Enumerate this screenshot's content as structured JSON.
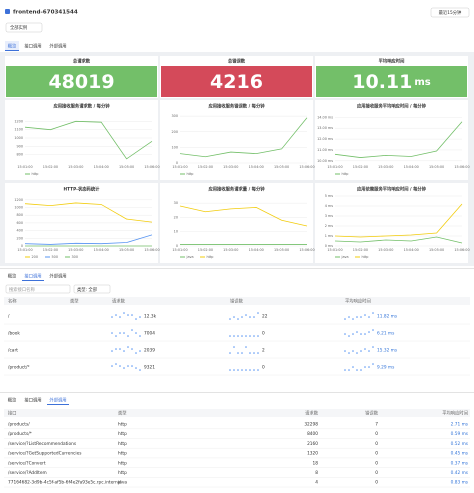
{
  "header": {
    "title": "frontend-670341544",
    "time_button": "最近15分钟",
    "instance": "全部实例"
  },
  "tabs": [
    "概览",
    "接口调用",
    "外部调用"
  ],
  "stats": [
    {
      "title": "总请求数",
      "value": "48019",
      "color": "#73bf69"
    },
    {
      "title": "总错误数",
      "value": "4216",
      "color": "#d44a5a"
    },
    {
      "title": "平均响应时间",
      "value": "10.11",
      "unit": "ms",
      "color": "#73bf69"
    }
  ],
  "charts": [
    {
      "type": "line",
      "title": "应用接收服务请求数 / 每分钟",
      "categories": [
        "15:01:00",
        "15:02:00",
        "15:03:00",
        "15:04:00",
        "15:05:00",
        "15:06:00"
      ],
      "series": [
        {
          "name": "http",
          "color": "#73bf69",
          "values": [
            1130,
            1100,
            1200,
            1190,
            750,
            960
          ]
        }
      ],
      "ylim": [
        700,
        1300
      ],
      "yticks": [
        800,
        900,
        1000,
        1100,
        1200
      ]
    },
    {
      "type": "line",
      "title": "应用接收服务错误数 / 每分钟",
      "categories": [
        "15:01:00",
        "15:02:00",
        "15:03:00",
        "15:04:00",
        "15:05:00",
        "15:06:00"
      ],
      "series": [
        {
          "name": "http",
          "color": "#73bf69",
          "values": [
            60,
            40,
            70,
            60,
            90,
            290
          ]
        }
      ],
      "ylim": [
        0,
        320
      ],
      "yticks": [
        0,
        100,
        200,
        300
      ]
    },
    {
      "type": "line",
      "title": "应用接收服务平均响应时间 / 每分钟",
      "categories": [
        "15:01:00",
        "15:02:00",
        "15:03:00",
        "15:04:00",
        "15:05:00",
        "15:06:00"
      ],
      "series": [
        {
          "name": "http",
          "color": "#73bf69",
          "values": [
            10.6,
            10.3,
            10.5,
            10.4,
            10.9,
            13.6
          ]
        }
      ],
      "ylim": [
        9.8,
        14.4
      ],
      "yticks": [
        {
          "value": 10,
          "label": "10.00 ms"
        },
        {
          "value": 11,
          "label": "11.00 ms"
        },
        {
          "value": 12,
          "label": "12.00 ms"
        },
        {
          "value": 13,
          "label": "13.00 ms"
        },
        {
          "value": 14,
          "label": "14.00 ms"
        }
      ]
    },
    {
      "type": "line",
      "title": "HTTP-状态码统计",
      "categories": [
        "15:01:00",
        "15:02:00",
        "15:03:00",
        "15:04:00",
        "15:05:00",
        "15:06:00"
      ],
      "series": [
        {
          "name": "200",
          "color": "#f2cc0c",
          "values": [
            1100,
            1050,
            1120,
            1080,
            700,
            620
          ]
        },
        {
          "name": "500",
          "color": "#5794f2",
          "values": [
            60,
            40,
            70,
            60,
            90,
            290
          ]
        },
        {
          "name": "300",
          "color": "#73bf69",
          "values": [
            0,
            0,
            0,
            0,
            0,
            0
          ]
        }
      ],
      "ylim": [
        0,
        1300
      ],
      "yticks": [
        0,
        200,
        400,
        600,
        800,
        1000,
        1200
      ]
    },
    {
      "type": "line",
      "title": "应用接收服务请求量 / 每分钟",
      "categories": [
        "15:01:00",
        "15:02:00",
        "15:03:00",
        "15:04:00",
        "15:05:00",
        "15:06:00"
      ],
      "series": [
        {
          "name": "java",
          "color": "#73bf69",
          "values": [
            1,
            1,
            1,
            1,
            1,
            1
          ]
        },
        {
          "name": "http",
          "color": "#f2cc0c",
          "values": [
            28,
            24,
            26,
            27,
            18,
            14
          ]
        }
      ],
      "ylim": [
        0,
        35
      ],
      "yticks": [
        0,
        10,
        20,
        30
      ]
    },
    {
      "type": "line",
      "title": "应用依赖服务平均响应时间 / 每分钟",
      "categories": [
        "15:01:00",
        "15:02:00",
        "15:03:00",
        "15:04:00",
        "15:05:00",
        "15:06:00"
      ],
      "series": [
        {
          "name": "java",
          "color": "#73bf69",
          "values": [
            0.5,
            0.4,
            0.6,
            0.5,
            0.9,
            0.3
          ]
        },
        {
          "name": "http",
          "color": "#f2cc0c",
          "values": [
            1.0,
            0.9,
            1.0,
            1.1,
            1.3,
            4.2
          ]
        }
      ],
      "ylim": [
        0,
        5
      ],
      "yticks": [
        {
          "value": 0,
          "label": "0 ms"
        },
        {
          "value": 1,
          "label": "1 ms"
        },
        {
          "value": 2,
          "label": "2 ms"
        },
        {
          "value": 3,
          "label": "3 ms"
        },
        {
          "value": 4,
          "label": "4 ms"
        },
        {
          "value": 5,
          "label": "5 ms"
        }
      ]
    }
  ],
  "interface_table": {
    "search_placeholder": "搜索接口名称",
    "type_filter": "类型: 全部",
    "columns": [
      "名称",
      "类型",
      "请求数",
      "错误数",
      "平均响应时间"
    ],
    "rows": [
      {
        "name": "/",
        "requests": "12.3k",
        "errors": "22",
        "latency": "11.82 ms",
        "req_trend": [
          5,
          6,
          5,
          7,
          6,
          6,
          4,
          5
        ],
        "err_trend": [
          1,
          2,
          1,
          2,
          3,
          2,
          2,
          4
        ],
        "lat_trend": [
          3,
          4,
          3,
          4,
          4,
          5,
          4,
          6
        ]
      },
      {
        "name": "/book",
        "requests": "7004",
        "errors": "0",
        "latency": "6.21 ms",
        "req_trend": [
          6,
          5,
          6,
          6,
          5,
          7,
          6,
          5
        ],
        "err_trend": [
          0,
          0,
          0,
          0,
          0,
          0,
          0,
          0
        ],
        "lat_trend": [
          4,
          3,
          4,
          5,
          4,
          4,
          5,
          6
        ]
      },
      {
        "name": "/cart",
        "requests": "2039",
        "errors": "2",
        "latency": "15.32 ms",
        "req_trend": [
          4,
          5,
          5,
          4,
          6,
          5,
          3,
          4
        ],
        "err_trend": [
          0,
          1,
          0,
          0,
          1,
          0,
          0,
          0
        ],
        "lat_trend": [
          5,
          4,
          5,
          4,
          5,
          6,
          5,
          7
        ]
      },
      {
        "name": "/product/*",
        "requests": "9321",
        "errors": "0",
        "latency": "9.29 ms",
        "req_trend": [
          6,
          7,
          6,
          5,
          6,
          6,
          5,
          4
        ],
        "err_trend": [
          0,
          0,
          0,
          0,
          0,
          0,
          0,
          0
        ],
        "lat_trend": [
          4,
          4,
          5,
          4,
          4,
          5,
          5,
          6
        ]
      }
    ]
  },
  "external_table": {
    "columns": [
      "接口",
      "类型",
      "请求数",
      "错误数",
      "平均响应时间"
    ],
    "rows": [
      [
        "/products/",
        "http",
        "32298",
        "7",
        "2.71 ms"
      ],
      [
        "/products/*",
        "http",
        "8400",
        "0",
        "0.59 ms"
      ],
      [
        "/service/?ListRecommendations",
        "http",
        "2160",
        "0",
        "0.52 ms"
      ],
      [
        "/service/?GetSupportedCurrencies",
        "http",
        "1320",
        "0",
        "0.45 ms"
      ],
      [
        "/service/?Convert",
        "http",
        "18",
        "0",
        "0.37 ms"
      ],
      [
        "/service/?AddItem",
        "http",
        "8",
        "0",
        "0.42 ms"
      ],
      [
        "77164682-3d9b-4c5f-af5b-6f4e2fa93e5c.rpc.internal",
        "java",
        "4",
        "0",
        "0.83 ms"
      ]
    ]
  }
}
